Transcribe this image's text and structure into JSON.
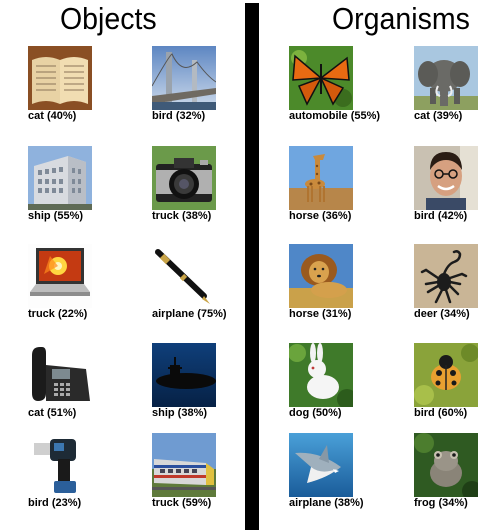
{
  "headings": {
    "objects": "Objects",
    "organisms": "Organisms"
  },
  "objects": [
    {
      "image": "open-book-photo",
      "label": "cat (40%)"
    },
    {
      "image": "suspension-bridge-photo",
      "label": "bird (32%)"
    },
    {
      "image": "office-building-photo",
      "label": "ship (55%)"
    },
    {
      "image": "film-camera-photo",
      "label": "truck (38%)"
    },
    {
      "image": "laptop-photo",
      "label": "truck (22%)"
    },
    {
      "image": "fountain-pen-photo",
      "label": "airplane (75%)"
    },
    {
      "image": "desk-phone-photo",
      "label": "cat (51%)"
    },
    {
      "image": "submarine-photo",
      "label": "ship (38%)"
    },
    {
      "image": "power-drill-photo",
      "label": "bird (23%)"
    },
    {
      "image": "passenger-train-photo",
      "label": "truck (59%)"
    }
  ],
  "organisms": [
    {
      "image": "monarch-butterfly-photo",
      "label": "automobile (55%)"
    },
    {
      "image": "elephant-photo",
      "label": "cat (39%)"
    },
    {
      "image": "giraffe-photo",
      "label": "horse (36%)"
    },
    {
      "image": "smiling-man-photo",
      "label": "bird (42%)"
    },
    {
      "image": "lion-photo",
      "label": "horse (31%)"
    },
    {
      "image": "scorpion-photo",
      "label": "deer (34%)"
    },
    {
      "image": "white-rabbit-photo",
      "label": "dog (50%)"
    },
    {
      "image": "ladybug-photo",
      "label": "bird (60%)"
    },
    {
      "image": "shark-photo",
      "label": "airplane (38%)"
    },
    {
      "image": "frog-photo",
      "label": "frog (34%)"
    }
  ]
}
